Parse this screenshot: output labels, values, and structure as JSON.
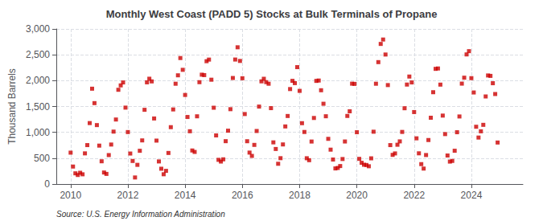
{
  "chart_data": {
    "type": "scatter",
    "title": "Monthly West Coast (PADD 5) Stocks at Bulk Terminals of Propane",
    "ylabel": "Thousand Barrels",
    "annotations": [
      "Source: U.S. Energy Information Administration"
    ],
    "color": "#cc0000",
    "marker": "square",
    "grid": true,
    "xlim": [
      2009.5,
      2025.8
    ],
    "xticks": [
      2010,
      2012,
      2014,
      2016,
      2018,
      2020,
      2022,
      2024
    ],
    "ylim": [
      0,
      3000
    ],
    "yticks": [
      0,
      500,
      {
        "value": 1000,
        "label": "1,000"
      },
      {
        "value": 1500,
        "label": "1,500"
      },
      {
        "value": 2000,
        "label": "2,000"
      },
      {
        "value": 2500,
        "label": "2,500"
      },
      {
        "value": 3000,
        "label": "3,000"
      }
    ],
    "x": [
      2010.0,
      2010.083,
      2010.167,
      2010.25,
      2010.333,
      2010.417,
      2010.5,
      2010.583,
      2010.667,
      2010.75,
      2010.833,
      2010.917,
      2011.0,
      2011.083,
      2011.167,
      2011.25,
      2011.333,
      2011.417,
      2011.5,
      2011.583,
      2011.667,
      2011.75,
      2011.833,
      2011.917,
      2012.0,
      2012.083,
      2012.167,
      2012.25,
      2012.333,
      2012.417,
      2012.5,
      2012.583,
      2012.667,
      2012.75,
      2012.833,
      2012.917,
      2013.0,
      2013.083,
      2013.167,
      2013.25,
      2013.333,
      2013.417,
      2013.5,
      2013.583,
      2013.667,
      2013.75,
      2013.833,
      2013.917,
      2014.0,
      2014.083,
      2014.167,
      2014.25,
      2014.333,
      2014.417,
      2014.5,
      2014.583,
      2014.667,
      2014.75,
      2014.833,
      2014.917,
      2015.0,
      2015.083,
      2015.167,
      2015.25,
      2015.333,
      2015.417,
      2015.5,
      2015.583,
      2015.667,
      2015.75,
      2015.833,
      2015.917,
      2016.0,
      2016.083,
      2016.167,
      2016.25,
      2016.333,
      2016.417,
      2016.5,
      2016.583,
      2016.667,
      2016.75,
      2016.833,
      2016.917,
      2017.0,
      2017.083,
      2017.167,
      2017.25,
      2017.333,
      2017.417,
      2017.5,
      2017.583,
      2017.667,
      2017.75,
      2017.833,
      2017.917,
      2018.0,
      2018.083,
      2018.167,
      2018.25,
      2018.333,
      2018.417,
      2018.5,
      2018.583,
      2018.667,
      2018.75,
      2018.833,
      2018.917,
      2019.0,
      2019.083,
      2019.167,
      2019.25,
      2019.333,
      2019.417,
      2019.5,
      2019.583,
      2019.667,
      2019.75,
      2019.833,
      2019.917,
      2020.0,
      2020.083,
      2020.167,
      2020.25,
      2020.333,
      2020.417,
      2020.5,
      2020.583,
      2020.667,
      2020.75,
      2020.833,
      2020.917,
      2021.0,
      2021.083,
      2021.167,
      2021.25,
      2021.333,
      2021.417,
      2021.5,
      2021.583,
      2021.667,
      2021.75,
      2021.833,
      2021.917,
      2022.0,
      2022.083,
      2022.167,
      2022.25,
      2022.333,
      2022.417,
      2022.5,
      2022.583,
      2022.667,
      2022.75,
      2022.833,
      2022.917,
      2023.0,
      2023.083,
      2023.167,
      2023.25,
      2023.333,
      2023.417,
      2023.5,
      2023.583,
      2023.667,
      2023.75,
      2023.833,
      2023.917,
      2024.0,
      2024.083,
      2024.167,
      2024.25,
      2024.333,
      2024.417,
      2024.5,
      2024.583,
      2024.667,
      2024.75,
      2024.833,
      2024.917
    ],
    "values": [
      607,
      338,
      207,
      175,
      218,
      188,
      593,
      753,
      1179,
      1844,
      1565,
      1140,
      743,
      440,
      223,
      196,
      560,
      764,
      1014,
      1248,
      1823,
      1908,
      1965,
      1478,
      1005,
      590,
      446,
      127,
      371,
      643,
      844,
      1436,
      1967,
      2037,
      1985,
      1268,
      840,
      437,
      296,
      189,
      255,
      601,
      1100,
      1443,
      1940,
      2103,
      2437,
      2209,
      1723,
      1297,
      1021,
      649,
      621,
      1310,
      1970,
      2115,
      2107,
      2376,
      2407,
      2018,
      1476,
      940,
      468,
      435,
      478,
      829,
      1032,
      1448,
      2051,
      2408,
      2645,
      2381,
      2046,
      1354,
      828,
      608,
      544,
      757,
      1026,
      1498,
      1986,
      2036,
      1971,
      1940,
      1468,
      806,
      678,
      392,
      500,
      766,
      1114,
      1316,
      1837,
      1996,
      1952,
      2261,
      1802,
      1177,
      1007,
      499,
      461,
      822,
      1278,
      1995,
      2002,
      1814,
      1553,
      1311,
      874,
      665,
      474,
      302,
      311,
      348,
      484,
      823,
      1317,
      1407,
      1941,
      1937,
      1002,
      487,
      411,
      373,
      368,
      344,
      497,
      1012,
      1940,
      2358,
      2710,
      2795,
      2505,
      1914,
      753,
      564,
      592,
      760,
      825,
      1008,
      1466,
      1924,
      2079,
      1965,
      1392,
      884,
      594,
      385,
      299,
      561,
      851,
      1282,
      1776,
      2228,
      2235,
      1923,
      1324,
      966,
      552,
      434,
      447,
      644,
      1002,
      1307,
      1942,
      2057,
      2507,
      2570,
      2048,
      1771,
      1108,
      899,
      1020,
      1145,
      1694,
      2100,
      2092,
      1950,
      1741,
      803
    ]
  }
}
